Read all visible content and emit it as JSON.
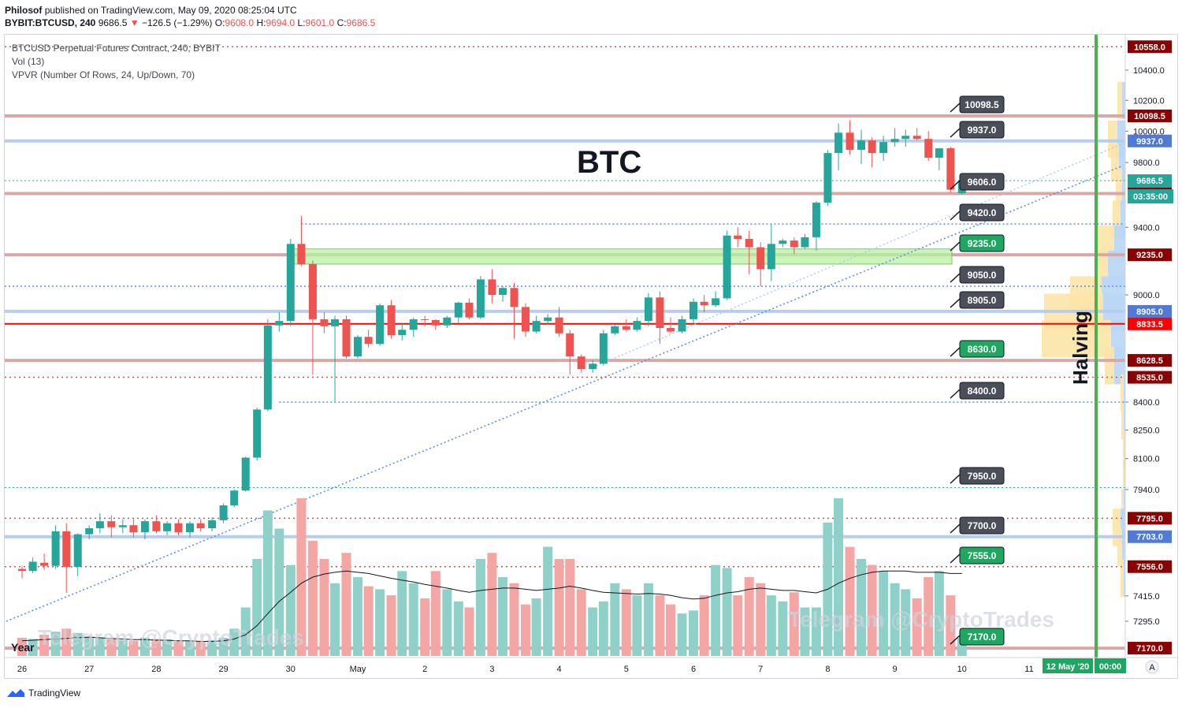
{
  "header": {
    "publisher": "Philosof",
    "published_text": "published on TradingView.com, May 09, 2020 08:25:04 UTC",
    "symbol": "BYBIT:BTCUSD, 240",
    "last": "9686.5",
    "change": "−126.5 (−1.29%)",
    "o_label": "O:",
    "o": "9608.0",
    "h_label": "H:",
    "h": "9694.0",
    "l_label": "L:",
    "l": "9601.0",
    "c_label": "C:",
    "c": "9686.5"
  },
  "legend": {
    "title": "BTCUSD Perpetual Futures Contract, 240, BYBIT",
    "vol": "Vol (13)",
    "vpvr": "VPVR (Number Of Rows, 24, Up/Down, 70)"
  },
  "annotations": {
    "main_text": "BTC",
    "halving": "Halving",
    "year": "Year",
    "telegram_left": "Telegram @CryptoTrades",
    "telegram_right": "Telegram @CryptoTrades"
  },
  "footer": {
    "brand": "TradingView"
  },
  "colors": {
    "up": "#26a69a",
    "down": "#ef5350",
    "up_vol": "#8fd1c8",
    "down_vol": "#f4a6a4",
    "resistance": "#d7a8a8",
    "support": "#b7cdf0",
    "key_red": "#ff0000",
    "zone": "#b5f2a3",
    "halving_line": "#4caf50",
    "label_dark": "#4a4f5a",
    "label_green": "#1ea760"
  },
  "chart_data": {
    "type": "candlestick",
    "title": "BTCUSD Perpetual Futures Contract, 240, BYBIT",
    "timeframe": "240",
    "x_ticks": [
      "26",
      "27",
      "28",
      "29",
      "30",
      "May",
      "2",
      "3",
      "4",
      "5",
      "6",
      "7",
      "8",
      "9",
      "10",
      "11"
    ],
    "y_ticks": [
      "10400.0",
      "10200.0",
      "10000.0",
      "9800.0",
      "9400.0",
      "9000.0",
      "8400.0",
      "8250.0",
      "8100.0",
      "7940.0",
      "7415.0",
      "7295.0"
    ],
    "y_scale": "log",
    "y_range": [
      7110,
      10700
    ],
    "x_range_days": [
      0,
      17.6
    ],
    "last_price": "9686.5",
    "countdown": "03:35:00",
    "candles": [
      {
        "t": 0.0,
        "o": 7545,
        "h": 7560,
        "l": 7500,
        "c": 7535
      },
      {
        "t": 0.16,
        "o": 7535,
        "h": 7600,
        "l": 7525,
        "c": 7580
      },
      {
        "t": 0.33,
        "o": 7575,
        "h": 7620,
        "l": 7540,
        "c": 7560
      },
      {
        "t": 0.5,
        "o": 7560,
        "h": 7760,
        "l": 7545,
        "c": 7730
      },
      {
        "t": 0.66,
        "o": 7730,
        "h": 7770,
        "l": 7430,
        "c": 7555
      },
      {
        "t": 0.83,
        "o": 7555,
        "h": 7720,
        "l": 7510,
        "c": 7715
      },
      {
        "t": 1.0,
        "o": 7715,
        "h": 7760,
        "l": 7690,
        "c": 7745
      },
      {
        "t": 1.16,
        "o": 7745,
        "h": 7820,
        "l": 7720,
        "c": 7780
      },
      {
        "t": 1.33,
        "o": 7780,
        "h": 7810,
        "l": 7700,
        "c": 7750
      },
      {
        "t": 1.5,
        "o": 7750,
        "h": 7790,
        "l": 7720,
        "c": 7760
      },
      {
        "t": 1.66,
        "o": 7760,
        "h": 7790,
        "l": 7700,
        "c": 7725
      },
      {
        "t": 1.83,
        "o": 7725,
        "h": 7790,
        "l": 7690,
        "c": 7780
      },
      {
        "t": 2.0,
        "o": 7780,
        "h": 7810,
        "l": 7720,
        "c": 7730
      },
      {
        "t": 2.16,
        "o": 7730,
        "h": 7780,
        "l": 7710,
        "c": 7770
      },
      {
        "t": 2.33,
        "o": 7770,
        "h": 7790,
        "l": 7710,
        "c": 7725
      },
      {
        "t": 2.5,
        "o": 7725,
        "h": 7780,
        "l": 7700,
        "c": 7770
      },
      {
        "t": 2.66,
        "o": 7770,
        "h": 7790,
        "l": 7730,
        "c": 7745
      },
      {
        "t": 2.83,
        "o": 7745,
        "h": 7800,
        "l": 7730,
        "c": 7785
      },
      {
        "t": 3.0,
        "o": 7785,
        "h": 7870,
        "l": 7770,
        "c": 7860
      },
      {
        "t": 3.16,
        "o": 7860,
        "h": 7940,
        "l": 7850,
        "c": 7935
      },
      {
        "t": 3.33,
        "o": 7935,
        "h": 8110,
        "l": 7930,
        "c": 8105
      },
      {
        "t": 3.5,
        "o": 8105,
        "h": 8370,
        "l": 8090,
        "c": 8360
      },
      {
        "t": 3.66,
        "o": 8360,
        "h": 8860,
        "l": 8350,
        "c": 8825
      },
      {
        "t": 3.83,
        "o": 8825,
        "h": 8900,
        "l": 8790,
        "c": 8850
      },
      {
        "t": 4.0,
        "o": 8850,
        "h": 9330,
        "l": 8820,
        "c": 9300
      },
      {
        "t": 4.16,
        "o": 9300,
        "h": 9470,
        "l": 9170,
        "c": 9180
      },
      {
        "t": 4.33,
        "o": 9180,
        "h": 9200,
        "l": 8550,
        "c": 8860
      },
      {
        "t": 4.5,
        "o": 8860,
        "h": 8900,
        "l": 8780,
        "c": 8820
      },
      {
        "t": 4.66,
        "o": 8820,
        "h": 8880,
        "l": 8400,
        "c": 8860
      },
      {
        "t": 4.83,
        "o": 8860,
        "h": 8880,
        "l": 8640,
        "c": 8650
      },
      {
        "t": 5.0,
        "o": 8650,
        "h": 8770,
        "l": 8640,
        "c": 8760
      },
      {
        "t": 5.16,
        "o": 8760,
        "h": 8800,
        "l": 8700,
        "c": 8720
      },
      {
        "t": 5.33,
        "o": 8720,
        "h": 8950,
        "l": 8710,
        "c": 8940
      },
      {
        "t": 5.5,
        "o": 8940,
        "h": 8970,
        "l": 8750,
        "c": 8770
      },
      {
        "t": 5.66,
        "o": 8770,
        "h": 8840,
        "l": 8740,
        "c": 8800
      },
      {
        "t": 5.83,
        "o": 8800,
        "h": 8870,
        "l": 8760,
        "c": 8860
      },
      {
        "t": 6.0,
        "o": 8860,
        "h": 8880,
        "l": 8820,
        "c": 8855
      },
      {
        "t": 6.16,
        "o": 8855,
        "h": 8860,
        "l": 8800,
        "c": 8825
      },
      {
        "t": 6.33,
        "o": 8825,
        "h": 8880,
        "l": 8810,
        "c": 8870
      },
      {
        "t": 6.5,
        "o": 8870,
        "h": 8960,
        "l": 8840,
        "c": 8955
      },
      {
        "t": 6.66,
        "o": 8955,
        "h": 8980,
        "l": 8860,
        "c": 8870
      },
      {
        "t": 6.83,
        "o": 8870,
        "h": 9110,
        "l": 8860,
        "c": 9090
      },
      {
        "t": 7.0,
        "o": 9090,
        "h": 9150,
        "l": 8950,
        "c": 9000
      },
      {
        "t": 7.16,
        "o": 9000,
        "h": 9050,
        "l": 8960,
        "c": 9040
      },
      {
        "t": 7.33,
        "o": 9040,
        "h": 9070,
        "l": 8750,
        "c": 8930
      },
      {
        "t": 7.5,
        "o": 8930,
        "h": 8950,
        "l": 8760,
        "c": 8790
      },
      {
        "t": 7.66,
        "o": 8790,
        "h": 8880,
        "l": 8780,
        "c": 8850
      },
      {
        "t": 7.83,
        "o": 8850,
        "h": 8890,
        "l": 8830,
        "c": 8870
      },
      {
        "t": 8.0,
        "o": 8870,
        "h": 8930,
        "l": 8760,
        "c": 8780
      },
      {
        "t": 8.16,
        "o": 8780,
        "h": 8800,
        "l": 8550,
        "c": 8650
      },
      {
        "t": 8.33,
        "o": 8650,
        "h": 8660,
        "l": 8560,
        "c": 8580
      },
      {
        "t": 8.5,
        "o": 8580,
        "h": 8630,
        "l": 8560,
        "c": 8610
      },
      {
        "t": 8.66,
        "o": 8610,
        "h": 8800,
        "l": 8600,
        "c": 8780
      },
      {
        "t": 8.83,
        "o": 8780,
        "h": 8830,
        "l": 8770,
        "c": 8820
      },
      {
        "t": 9.0,
        "o": 8820,
        "h": 8860,
        "l": 8790,
        "c": 8800
      },
      {
        "t": 9.16,
        "o": 8800,
        "h": 8870,
        "l": 8790,
        "c": 8850
      },
      {
        "t": 9.33,
        "o": 8850,
        "h": 9010,
        "l": 8820,
        "c": 8985
      },
      {
        "t": 9.5,
        "o": 8985,
        "h": 9020,
        "l": 8720,
        "c": 8810
      },
      {
        "t": 9.66,
        "o": 8810,
        "h": 8870,
        "l": 8780,
        "c": 8790
      },
      {
        "t": 9.83,
        "o": 8790,
        "h": 8880,
        "l": 8780,
        "c": 8860
      },
      {
        "t": 10.0,
        "o": 8860,
        "h": 8980,
        "l": 8840,
        "c": 8960
      },
      {
        "t": 10.16,
        "o": 8960,
        "h": 9000,
        "l": 8900,
        "c": 8940
      },
      {
        "t": 10.33,
        "o": 8940,
        "h": 9020,
        "l": 8930,
        "c": 8980
      },
      {
        "t": 10.5,
        "o": 8980,
        "h": 9380,
        "l": 8970,
        "c": 9350
      },
      {
        "t": 10.66,
        "o": 9350,
        "h": 9400,
        "l": 9280,
        "c": 9330
      },
      {
        "t": 10.83,
        "o": 9330,
        "h": 9380,
        "l": 9120,
        "c": 9280
      },
      {
        "t": 11.0,
        "o": 9280,
        "h": 9310,
        "l": 9050,
        "c": 9150
      },
      {
        "t": 11.16,
        "o": 9150,
        "h": 9420,
        "l": 9080,
        "c": 9300
      },
      {
        "t": 11.33,
        "o": 9300,
        "h": 9330,
        "l": 9280,
        "c": 9320
      },
      {
        "t": 11.5,
        "o": 9320,
        "h": 9340,
        "l": 9240,
        "c": 9280
      },
      {
        "t": 11.66,
        "o": 9280,
        "h": 9360,
        "l": 9270,
        "c": 9340
      },
      {
        "t": 11.83,
        "o": 9340,
        "h": 9560,
        "l": 9260,
        "c": 9550
      },
      {
        "t": 12.0,
        "o": 9550,
        "h": 9880,
        "l": 9530,
        "c": 9860
      },
      {
        "t": 12.16,
        "o": 9860,
        "h": 10050,
        "l": 9750,
        "c": 9990
      },
      {
        "t": 12.33,
        "o": 9990,
        "h": 10070,
        "l": 9850,
        "c": 9880
      },
      {
        "t": 12.5,
        "o": 9880,
        "h": 10010,
        "l": 9790,
        "c": 9940
      },
      {
        "t": 12.66,
        "o": 9940,
        "h": 9960,
        "l": 9770,
        "c": 9860
      },
      {
        "t": 12.83,
        "o": 9860,
        "h": 9970,
        "l": 9810,
        "c": 9930
      },
      {
        "t": 13.0,
        "o": 9930,
        "h": 10020,
        "l": 9900,
        "c": 9950
      },
      {
        "t": 13.16,
        "o": 9950,
        "h": 10010,
        "l": 9900,
        "c": 9970
      },
      {
        "t": 13.33,
        "o": 9970,
        "h": 10020,
        "l": 9940,
        "c": 9950
      },
      {
        "t": 13.5,
        "o": 9950,
        "h": 10000,
        "l": 9810,
        "c": 9830
      },
      {
        "t": 13.66,
        "o": 9830,
        "h": 9880,
        "l": 9750,
        "c": 9890
      },
      {
        "t": 13.83,
        "o": 9890,
        "h": 9900,
        "l": 9610,
        "c": 9630
      },
      {
        "t": 14.0,
        "o": 9608,
        "h": 9694,
        "l": 9601,
        "c": 9686.5
      }
    ],
    "volume": {
      "series_name": "Vol",
      "values": [
        30,
        28,
        35,
        40,
        45,
        38,
        32,
        30,
        28,
        26,
        25,
        30,
        28,
        27,
        26,
        25,
        24,
        26,
        30,
        45,
        80,
        160,
        240,
        210,
        150,
        260,
        190,
        160,
        120,
        170,
        130,
        115,
        110,
        100,
        140,
        120,
        95,
        140,
        110,
        90,
        80,
        160,
        170,
        130,
        120,
        85,
        95,
        180,
        160,
        160,
        110,
        80,
        90,
        120,
        110,
        100,
        120,
        100,
        85,
        70,
        75,
        100,
        150,
        145,
        100,
        130,
        120,
        100,
        90,
        105,
        80,
        80,
        220,
        260,
        180,
        160,
        150,
        140,
        120,
        110,
        95,
        130,
        140,
        100,
        30
      ],
      "ma": [
        25,
        26,
        27,
        28,
        29,
        30,
        31,
        30,
        29,
        28,
        27,
        27,
        26,
        26,
        25,
        25,
        24,
        24,
        25,
        28,
        35,
        50,
        70,
        90,
        105,
        120,
        130,
        135,
        138,
        140,
        138,
        136,
        132,
        128,
        125,
        122,
        118,
        115,
        112,
        108,
        105,
        108,
        110,
        112,
        112,
        110,
        108,
        110,
        112,
        115,
        112,
        108,
        105,
        104,
        103,
        102,
        103,
        102,
        100,
        96,
        94,
        95,
        100,
        104,
        106,
        110,
        112,
        110,
        108,
        108,
        106,
        104,
        110,
        120,
        128,
        134,
        138,
        140,
        140,
        140,
        138,
        138,
        138,
        136,
        136
      ]
    },
    "horizontal_levels": [
      {
        "price": "10558.0",
        "kind": "dotted-red",
        "label": "10558.0"
      },
      {
        "price": "10098.5",
        "kind": "resistance",
        "label": "10098.5"
      },
      {
        "price": "9937.0",
        "kind": "support",
        "label": "9937.0"
      },
      {
        "price": "9686.5",
        "kind": "dotted-teal",
        "label": "9686.5"
      },
      {
        "price": "9606.5",
        "kind": "resistance",
        "label": "9606.5"
      },
      {
        "price": "9420.0",
        "kind": "dotted-blue"
      },
      {
        "price": "9235.0",
        "kind": "resistance",
        "label": "9235.0"
      },
      {
        "price": "9050.0",
        "kind": "dotted-blue"
      },
      {
        "price": "8905.0",
        "kind": "support",
        "label": "8905.0"
      },
      {
        "price": "8833.5",
        "kind": "key-red",
        "label": "8833.5"
      },
      {
        "price": "8628.5",
        "kind": "resistance",
        "label": "8628.5"
      },
      {
        "price": "8535.0",
        "kind": "dotted-red",
        "label": "8535.0"
      },
      {
        "price": "8400.0",
        "kind": "dotted-blue"
      },
      {
        "price": "7950.0",
        "kind": "dotted-teal"
      },
      {
        "price": "7795.0",
        "kind": "dotted-red",
        "label": "7795.0"
      },
      {
        "price": "7703.0",
        "kind": "support",
        "label": "7703.0"
      },
      {
        "price": "7556.0",
        "kind": "dotted-red",
        "label": "7556.0"
      },
      {
        "price": "7170.0",
        "kind": "resistance",
        "label": "7170.0"
      }
    ],
    "level_callouts": [
      {
        "text": "10098.5",
        "style": "dark"
      },
      {
        "text": "9937.0",
        "style": "dark"
      },
      {
        "text": "9606.0",
        "style": "dark"
      },
      {
        "text": "9420.0",
        "style": "dark"
      },
      {
        "text": "9235.0",
        "style": "green"
      },
      {
        "text": "9050.0",
        "style": "dark"
      },
      {
        "text": "8905.0",
        "style": "dark"
      },
      {
        "text": "8630.0",
        "style": "green"
      },
      {
        "text": "8400.0",
        "style": "dark"
      },
      {
        "text": "7950.0",
        "style": "dark"
      },
      {
        "text": "7700.0",
        "style": "dark"
      },
      {
        "text": "7555.0",
        "style": "green"
      },
      {
        "text": "7170.0",
        "style": "green"
      }
    ],
    "zone": {
      "from": 9180,
      "to": 9270
    },
    "halving_date": "12 May '20",
    "halving_time": "00:00",
    "auto_scale_label": "A",
    "vpvr_rows": 24
  }
}
